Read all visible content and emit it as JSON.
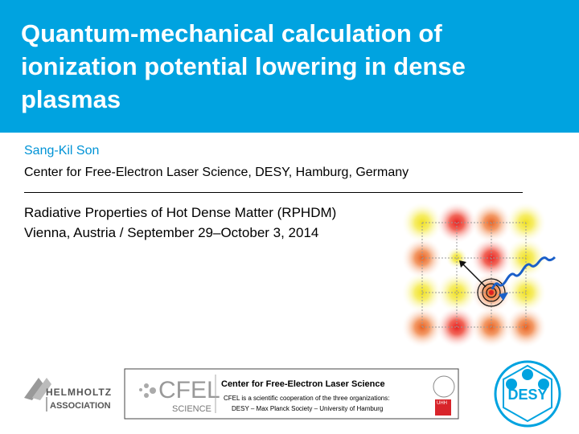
{
  "header": {
    "title_lines": [
      "Quantum-mechanical calculation of",
      "ionization potential lowering in dense",
      "plasmas"
    ]
  },
  "author": {
    "name": "Sang-Kil Son",
    "affiliation": "Center for Free-Electron Laser Science, DESY, Hamburg, Germany"
  },
  "conference": {
    "name": "Radiative Properties of Hot Dense Matter (RPHDM)",
    "place_date": "Vienna, Austria / September 29–October 3, 2014"
  },
  "footer": {
    "helmholtz": [
      "HELMHOLTZ",
      "ASSOCIATION"
    ],
    "cfel": {
      "logo": "CFEL",
      "logo_sub": "SCIENCE",
      "title": "Center for Free-Electron Laser Science",
      "lines": [
        "CFEL is a scientific cooperation of the three organizations:",
        "DESY – Max Planck Society – University of Hamburg"
      ],
      "uhh": "UHH"
    },
    "desy": "DESY"
  }
}
